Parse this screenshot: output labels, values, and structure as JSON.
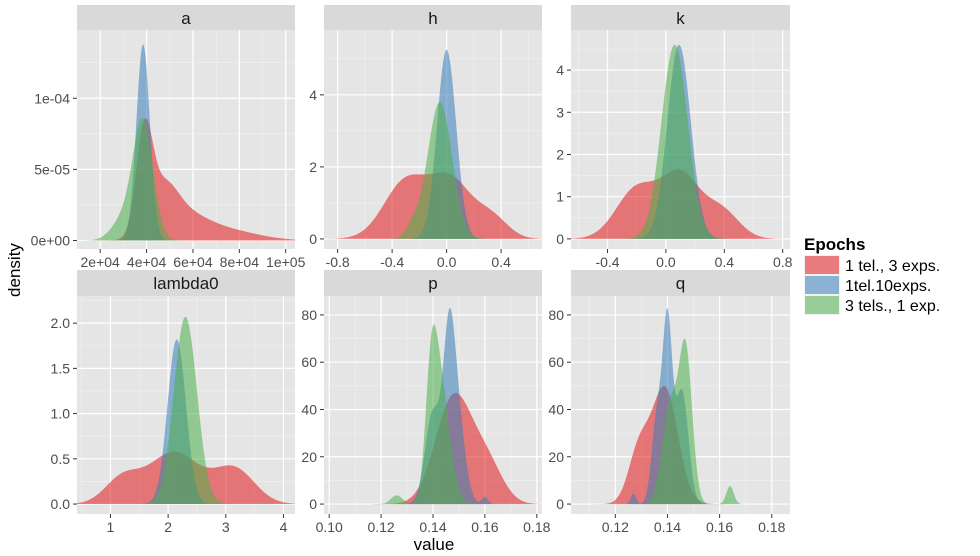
{
  "chart_data": {
    "type": "density",
    "xlabel": "value",
    "ylabel": "density",
    "legend": {
      "title": "Epochs",
      "position": "right",
      "entries": [
        {
          "label": "1 tel., 3 exps.",
          "color": "#e41a1c"
        },
        {
          "label": "1tel.10exps.",
          "color": "#377eb8"
        },
        {
          "label": "3 tels., 1 exp.",
          "color": "#4daf4a"
        }
      ]
    },
    "fill_opacity": 0.55,
    "panels": [
      {
        "name": "a",
        "xlim": [
          10000,
          104000
        ],
        "ylim": [
          -6e-06,
          0.000148
        ],
        "xticks": [
          {
            "v": 20000,
            "label": "2e+04"
          },
          {
            "v": 40000,
            "label": "4e+04"
          },
          {
            "v": 60000,
            "label": "6e+04"
          },
          {
            "v": 80000,
            "label": "8e+04"
          },
          {
            "v": 100000,
            "label": "1e+05"
          }
        ],
        "yticks": [
          {
            "v": 0,
            "label": "0e+00"
          },
          {
            "v": 5e-05,
            "label": "5e-05"
          },
          {
            "v": 0.0001,
            "label": "1e-04"
          }
        ],
        "series": [
          {
            "name": "1 tel., 3 exps.",
            "comps": [
              [
                0.55,
                39000,
                3500
              ],
              [
                0.22,
                47000,
                6000
              ],
              [
                0.13,
                55000,
                10000
              ],
              [
                0.06,
                73000,
                14000
              ]
            ]
          },
          {
            "name": "1tel.10exps.",
            "comps": [
              [
                1.0,
                38500,
                2900
              ]
            ]
          },
          {
            "name": "3 tels., 1 exp.",
            "comps": [
              [
                0.85,
                38500,
                4300
              ],
              [
                0.15,
                30000,
                5000
              ]
            ]
          }
        ],
        "peaks": [
          8.6e-05,
          0.000138,
          8.6e-05
        ]
      },
      {
        "name": "h",
        "xlim": [
          -0.9,
          0.7
        ],
        "ylim": [
          -0.28,
          5.8
        ],
        "xticks": [
          {
            "v": -0.8,
            "label": "-0.8"
          },
          {
            "v": -0.4,
            "label": "-0.4"
          },
          {
            "v": 0.0,
            "label": "0.0"
          },
          {
            "v": 0.4,
            "label": "0.4"
          }
        ],
        "yticks": [
          {
            "v": 0,
            "label": "0"
          },
          {
            "v": 2,
            "label": "2"
          },
          {
            "v": 4,
            "label": "4"
          }
        ],
        "series": [
          {
            "name": "1 tel., 3 exps.",
            "comps": [
              [
                0.6,
                -0.3,
                0.16
              ],
              [
                0.6,
                0.03,
                0.15
              ],
              [
                0.22,
                0.33,
                0.12
              ]
            ]
          },
          {
            "name": "1tel.10exps.",
            "comps": [
              [
                1.0,
                0.0,
                0.07
              ]
            ]
          },
          {
            "name": "3 tels., 1 exp.",
            "comps": [
              [
                1.0,
                -0.05,
                0.09
              ],
              [
                0.08,
                -0.25,
                0.05
              ]
            ]
          }
        ],
        "peaks": [
          1.85,
          5.25,
          3.8
        ]
      },
      {
        "name": "k",
        "xlim": [
          -0.65,
          0.85
        ],
        "ylim": [
          -0.24,
          4.95
        ],
        "xticks": [
          {
            "v": -0.4,
            "label": "-0.4"
          },
          {
            "v": 0.0,
            "label": "0.0"
          },
          {
            "v": 0.4,
            "label": "0.4"
          },
          {
            "v": 0.8,
            "label": "0.8"
          }
        ],
        "yticks": [
          {
            "v": 0,
            "label": "0"
          },
          {
            "v": 1,
            "label": "1"
          },
          {
            "v": 2,
            "label": "2"
          },
          {
            "v": 3,
            "label": "3"
          },
          {
            "v": 4,
            "label": "4"
          }
        ],
        "series": [
          {
            "name": "1 tel., 3 exps.",
            "comps": [
              [
                0.8,
                -0.2,
                0.14
              ],
              [
                1.0,
                0.1,
                0.13
              ],
              [
                0.45,
                0.38,
                0.12
              ]
            ]
          },
          {
            "name": "1tel.10exps.",
            "comps": [
              [
                1.0,
                0.09,
                0.08
              ]
            ]
          },
          {
            "name": "3 tels., 1 exp.",
            "comps": [
              [
                1.0,
                0.06,
                0.09
              ]
            ]
          }
        ],
        "peaks": [
          1.65,
          4.6,
          4.6
        ]
      },
      {
        "name": "lambda0",
        "xlim": [
          0.42,
          4.2
        ],
        "ylim": [
          -0.11,
          2.3
        ],
        "xticks": [
          {
            "v": 1,
            "label": "1"
          },
          {
            "v": 2,
            "label": "2"
          },
          {
            "v": 3,
            "label": "3"
          },
          {
            "v": 4,
            "label": "4"
          }
        ],
        "yticks": [
          {
            "v": 0,
            "label": "0.0"
          },
          {
            "v": 0.5,
            "label": "0.5"
          },
          {
            "v": 1.0,
            "label": "1.0"
          },
          {
            "v": 1.5,
            "label": "1.5"
          },
          {
            "v": 2.0,
            "label": "2.0"
          }
        ],
        "series": [
          {
            "name": "1 tel., 3 exps.",
            "comps": [
              [
                0.35,
                1.2,
                0.3
              ],
              [
                0.75,
                2.1,
                0.45
              ],
              [
                0.5,
                3.15,
                0.35
              ]
            ]
          },
          {
            "name": "1tel.10exps.",
            "comps": [
              [
                1.0,
                2.15,
                0.16
              ]
            ]
          },
          {
            "name": "3 tels., 1 exp.",
            "comps": [
              [
                1.0,
                2.3,
                0.2
              ]
            ]
          }
        ],
        "peaks": [
          0.58,
          1.82,
          2.07
        ]
      },
      {
        "name": "p",
        "xlim": [
          0.098,
          0.182
        ],
        "ylim": [
          -4.2,
          88
        ],
        "xticks": [
          {
            "v": 0.1,
            "label": "0.10"
          },
          {
            "v": 0.12,
            "label": "0.12"
          },
          {
            "v": 0.14,
            "label": "0.14"
          },
          {
            "v": 0.16,
            "label": "0.16"
          },
          {
            "v": 0.18,
            "label": "0.18"
          }
        ],
        "yticks": [
          {
            "v": 0,
            "label": "0"
          },
          {
            "v": 20,
            "label": "20"
          },
          {
            "v": 40,
            "label": "40"
          },
          {
            "v": 60,
            "label": "60"
          },
          {
            "v": 80,
            "label": "80"
          }
        ],
        "series": [
          {
            "name": "1 tel., 3 exps.",
            "comps": [
              [
                1.0,
                0.148,
                0.007
              ],
              [
                0.35,
                0.161,
                0.006
              ]
            ]
          },
          {
            "name": "1tel.10exps.",
            "comps": [
              [
                1.0,
                0.146,
                0.0022
              ],
              [
                0.8,
                0.149,
                0.003
              ],
              [
                0.75,
                0.14,
                0.003
              ],
              [
                0.06,
                0.16,
                0.0012
              ]
            ]
          },
          {
            "name": "3 tels., 1 exp.",
            "comps": [
              [
                1.0,
                0.1395,
                0.0023
              ],
              [
                0.65,
                0.1435,
                0.0025
              ],
              [
                0.15,
                0.1475,
                0.0025
              ],
              [
                0.06,
                0.126,
                0.0022
              ]
            ]
          }
        ],
        "peaks": [
          47,
          83,
          76
        ]
      },
      {
        "name": "q",
        "xlim": [
          0.103,
          0.187
        ],
        "ylim": [
          -4.2,
          88
        ],
        "xticks": [
          {
            "v": 0.12,
            "label": "0.12"
          },
          {
            "v": 0.14,
            "label": "0.14"
          },
          {
            "v": 0.16,
            "label": "0.16"
          },
          {
            "v": 0.18,
            "label": "0.18"
          }
        ],
        "yticks": [
          {
            "v": 0,
            "label": "0"
          },
          {
            "v": 20,
            "label": "20"
          },
          {
            "v": 40,
            "label": "40"
          },
          {
            "v": 60,
            "label": "60"
          },
          {
            "v": 80,
            "label": "80"
          }
        ],
        "series": [
          {
            "name": "1 tel., 3 exps.",
            "comps": [
              [
                0.45,
                0.129,
                0.004
              ],
              [
                1.0,
                0.139,
                0.005
              ]
            ]
          },
          {
            "name": "1tel.10exps.",
            "comps": [
              [
                1.0,
                0.14,
                0.0018
              ],
              [
                0.65,
                0.1455,
                0.0025
              ],
              [
                0.5,
                0.136,
                0.002
              ],
              [
                0.06,
                0.127,
                0.001
              ]
            ]
          },
          {
            "name": "3 tels., 1 exp.",
            "comps": [
              [
                1.0,
                0.147,
                0.0025
              ],
              [
                0.65,
                0.141,
                0.003
              ],
              [
                0.12,
                0.164,
                0.0014
              ]
            ]
          }
        ],
        "peaks": [
          50,
          83,
          70
        ]
      }
    ]
  }
}
